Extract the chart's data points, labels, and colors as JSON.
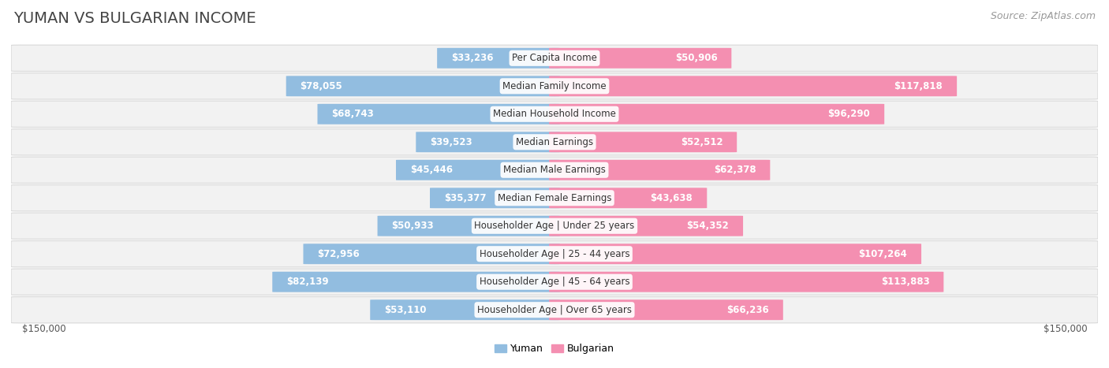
{
  "title": "YUMAN VS BULGARIAN INCOME",
  "source": "Source: ZipAtlas.com",
  "categories": [
    "Per Capita Income",
    "Median Family Income",
    "Median Household Income",
    "Median Earnings",
    "Median Male Earnings",
    "Median Female Earnings",
    "Householder Age | Under 25 years",
    "Householder Age | 25 - 44 years",
    "Householder Age | 45 - 64 years",
    "Householder Age | Over 65 years"
  ],
  "yuman_values": [
    33236,
    78055,
    68743,
    39523,
    45446,
    35377,
    50933,
    72956,
    82139,
    53110
  ],
  "bulgarian_values": [
    50906,
    117818,
    96290,
    52512,
    62378,
    43638,
    54352,
    107264,
    113883,
    66236
  ],
  "yuman_color": "#92bde0",
  "bulgarian_color": "#f48fb1",
  "yuman_label": "Yuman",
  "bulgarian_label": "Bulgarian",
  "axis_max": 150000,
  "title_fontsize": 14,
  "source_fontsize": 9,
  "value_fontsize": 8.5,
  "cat_fontsize": 8.5,
  "axis_label_fontsize": 8.5,
  "legend_fontsize": 9,
  "title_color": "#444444",
  "source_color": "#999999",
  "value_color_dark": "#555555",
  "value_color_light": "#ffffff",
  "row_bg_even": "#f2f2f2",
  "row_bg_odd": "#f2f2f2",
  "row_border_color": "#d8d8d8",
  "cat_label_bg": "#ffffff"
}
